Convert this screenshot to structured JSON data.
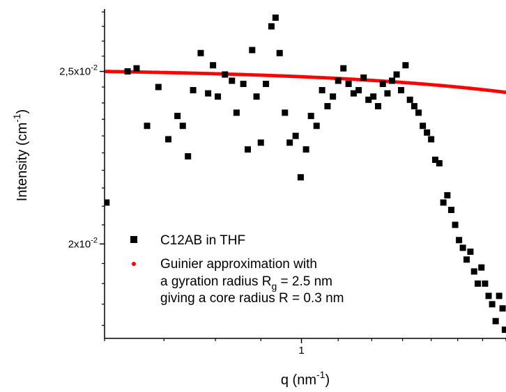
{
  "chart_data": {
    "type": "scatter",
    "title": "",
    "xlabel": {
      "main": "q (nm",
      "sup": "-1",
      "end": ")"
    },
    "ylabel": {
      "main": "Intensity (cm",
      "sup": "-1",
      "end": ")"
    },
    "x_scale": "log",
    "y_scale": "log",
    "xlim": [
      0.6,
      1.7
    ],
    "ylim": [
      0.0177,
      0.0271
    ],
    "x_ticks": [
      {
        "value": 1,
        "label": "1"
      }
    ],
    "y_ticks": [
      {
        "value": 0.025,
        "label_main": "2,5x10",
        "label_exp": "-2"
      },
      {
        "value": 0.02,
        "label_main": "2x10",
        "label_exp": "-2"
      }
    ],
    "grid": false,
    "legend_placement": "center-left",
    "colors": {
      "data": "#000000",
      "fit": "#ff0000"
    },
    "series": [
      {
        "name": "C12AB in THF",
        "marker": "square",
        "x": [
          0.603,
          0.637,
          0.652,
          0.67,
          0.69,
          0.708,
          0.725,
          0.735,
          0.745,
          0.755,
          0.77,
          0.785,
          0.795,
          0.805,
          0.82,
          0.835,
          0.845,
          0.86,
          0.87,
          0.88,
          0.89,
          0.9,
          0.912,
          0.925,
          0.935,
          0.945,
          0.958,
          0.97,
          0.985,
          0.998,
          1.012,
          1.025,
          1.04,
          1.055,
          1.07,
          1.085,
          1.1,
          1.115,
          1.13,
          1.145,
          1.16,
          1.175,
          1.19,
          1.205,
          1.22,
          1.235,
          1.25,
          1.265,
          1.28,
          1.295,
          1.31,
          1.325,
          1.34,
          1.355,
          1.37,
          1.385,
          1.4,
          1.415,
          1.43,
          1.445,
          1.46,
          1.475,
          1.49,
          1.505,
          1.52,
          1.535,
          1.55,
          1.565,
          1.58,
          1.595,
          1.61,
          1.625,
          1.64,
          1.655,
          1.67,
          1.685,
          1.695
        ],
        "y": [
          0.0211,
          0.025,
          0.0251,
          0.0233,
          0.0245,
          0.0229,
          0.0236,
          0.0233,
          0.0224,
          0.0244,
          0.0256,
          0.0243,
          0.0252,
          0.0242,
          0.0249,
          0.0247,
          0.0237,
          0.0246,
          0.0226,
          0.0257,
          0.0242,
          0.0228,
          0.0246,
          0.0265,
          0.0268,
          0.0256,
          0.0237,
          0.0228,
          0.023,
          0.0218,
          0.0226,
          0.0236,
          0.0233,
          0.0244,
          0.0239,
          0.0242,
          0.0247,
          0.0251,
          0.0246,
          0.0243,
          0.0244,
          0.0248,
          0.0241,
          0.0242,
          0.0239,
          0.0246,
          0.0243,
          0.0247,
          0.0249,
          0.0244,
          0.0252,
          0.0241,
          0.0239,
          0.0237,
          0.0233,
          0.0231,
          0.0229,
          0.0223,
          0.0222,
          0.0211,
          0.0213,
          0.0209,
          0.0205,
          0.0201,
          0.0199,
          0.0196,
          0.0198,
          0.0193,
          0.019,
          0.0194,
          0.019,
          0.0187,
          0.0185,
          0.0181,
          0.0187,
          0.0184,
          0.0179
        ]
      },
      {
        "name": "Guinier approximation with",
        "name_line2": {
          "main": "a gyration radius R",
          "sub": "g",
          "end": " = 2.5 nm"
        },
        "name_line3": "giving a core radius R = 0.3 nm",
        "marker": "circle",
        "model": "guinier",
        "I0": 0.025,
        "Rg": 2.5
      }
    ]
  }
}
